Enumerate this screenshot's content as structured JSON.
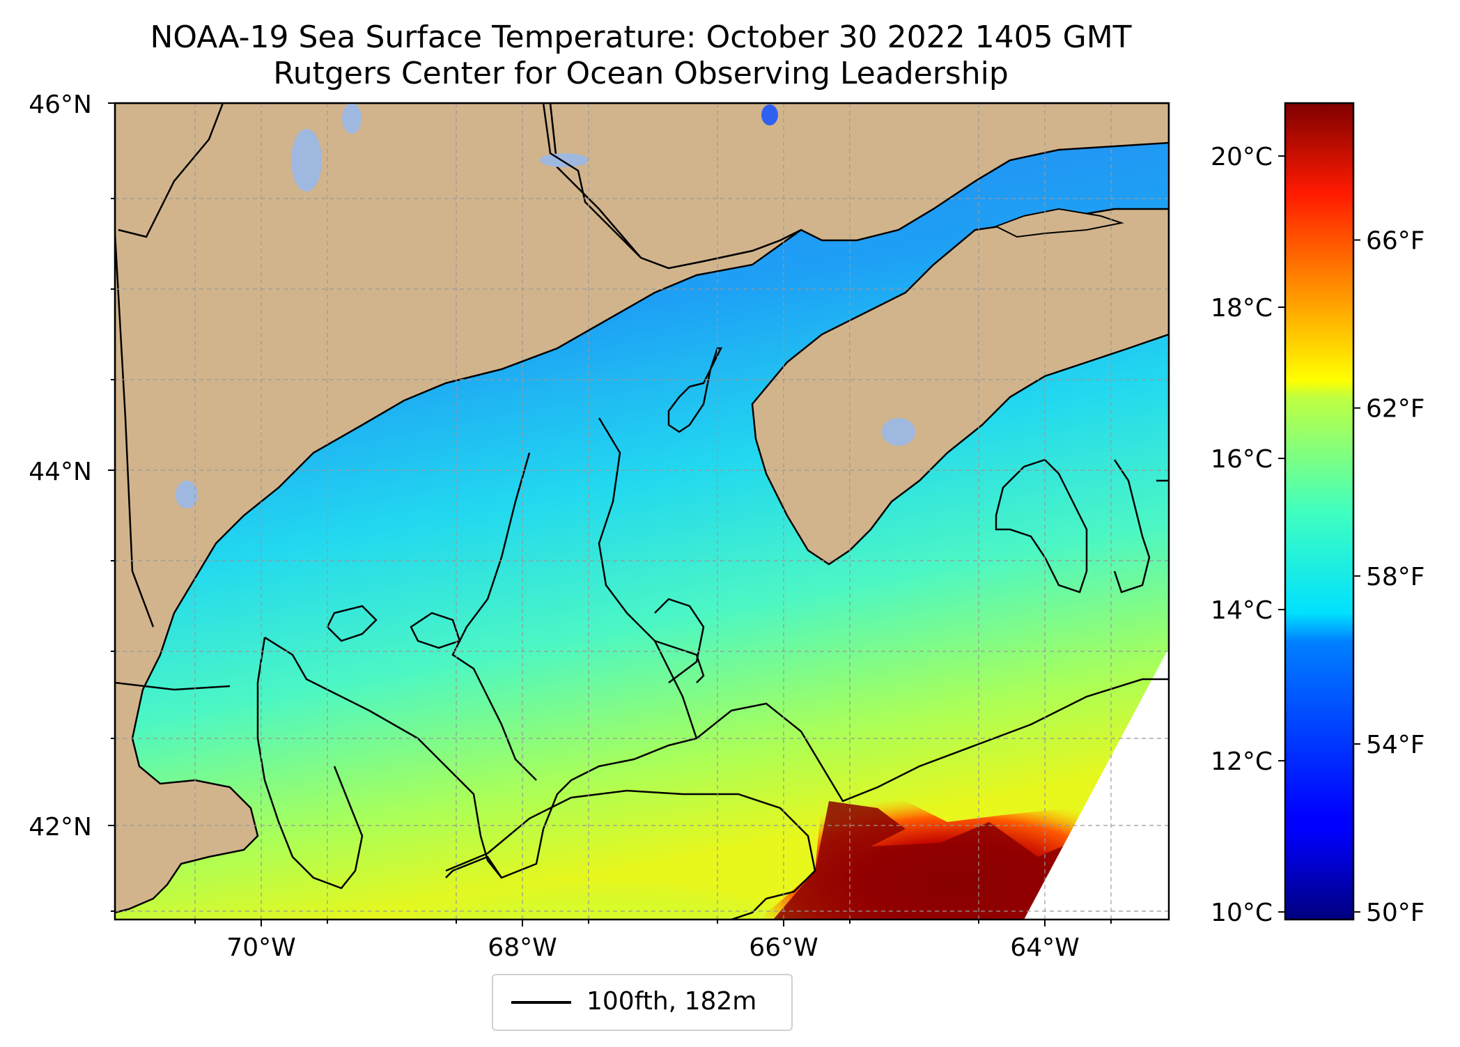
{
  "title": "NOAA-19 Sea Surface Temperature: October 30 2022 1405 GMT",
  "subtitle": "Rutgers Center for Ocean Observing Leadership",
  "map": {
    "lat_labels": [
      "46°N",
      "44°N",
      "42°N"
    ],
    "lon_labels": [
      "70°W",
      "68°W",
      "66°W",
      "64°W"
    ],
    "lon_range": [
      -71.1,
      -63.0
    ],
    "lat_range": [
      41.5,
      46.0
    ],
    "land_color": "#d2b48c",
    "lake_color": "#9fb8e0",
    "grid": true
  },
  "colorbar": {
    "celsius_labels": [
      "20°C",
      "18°C",
      "16°C",
      "14°C",
      "12°C",
      "10°C"
    ],
    "celsius_values": [
      20,
      18,
      16,
      14,
      12,
      10
    ],
    "fahrenheit_labels": [
      "66°F",
      "62°F",
      "58°F",
      "54°F",
      "50°F"
    ],
    "fahrenheit_values": [
      66,
      62,
      58,
      54,
      50
    ],
    "range_c": [
      9.9,
      20.7
    ],
    "colormap": "jet"
  },
  "legend": {
    "label": "100fth, 182m"
  }
}
